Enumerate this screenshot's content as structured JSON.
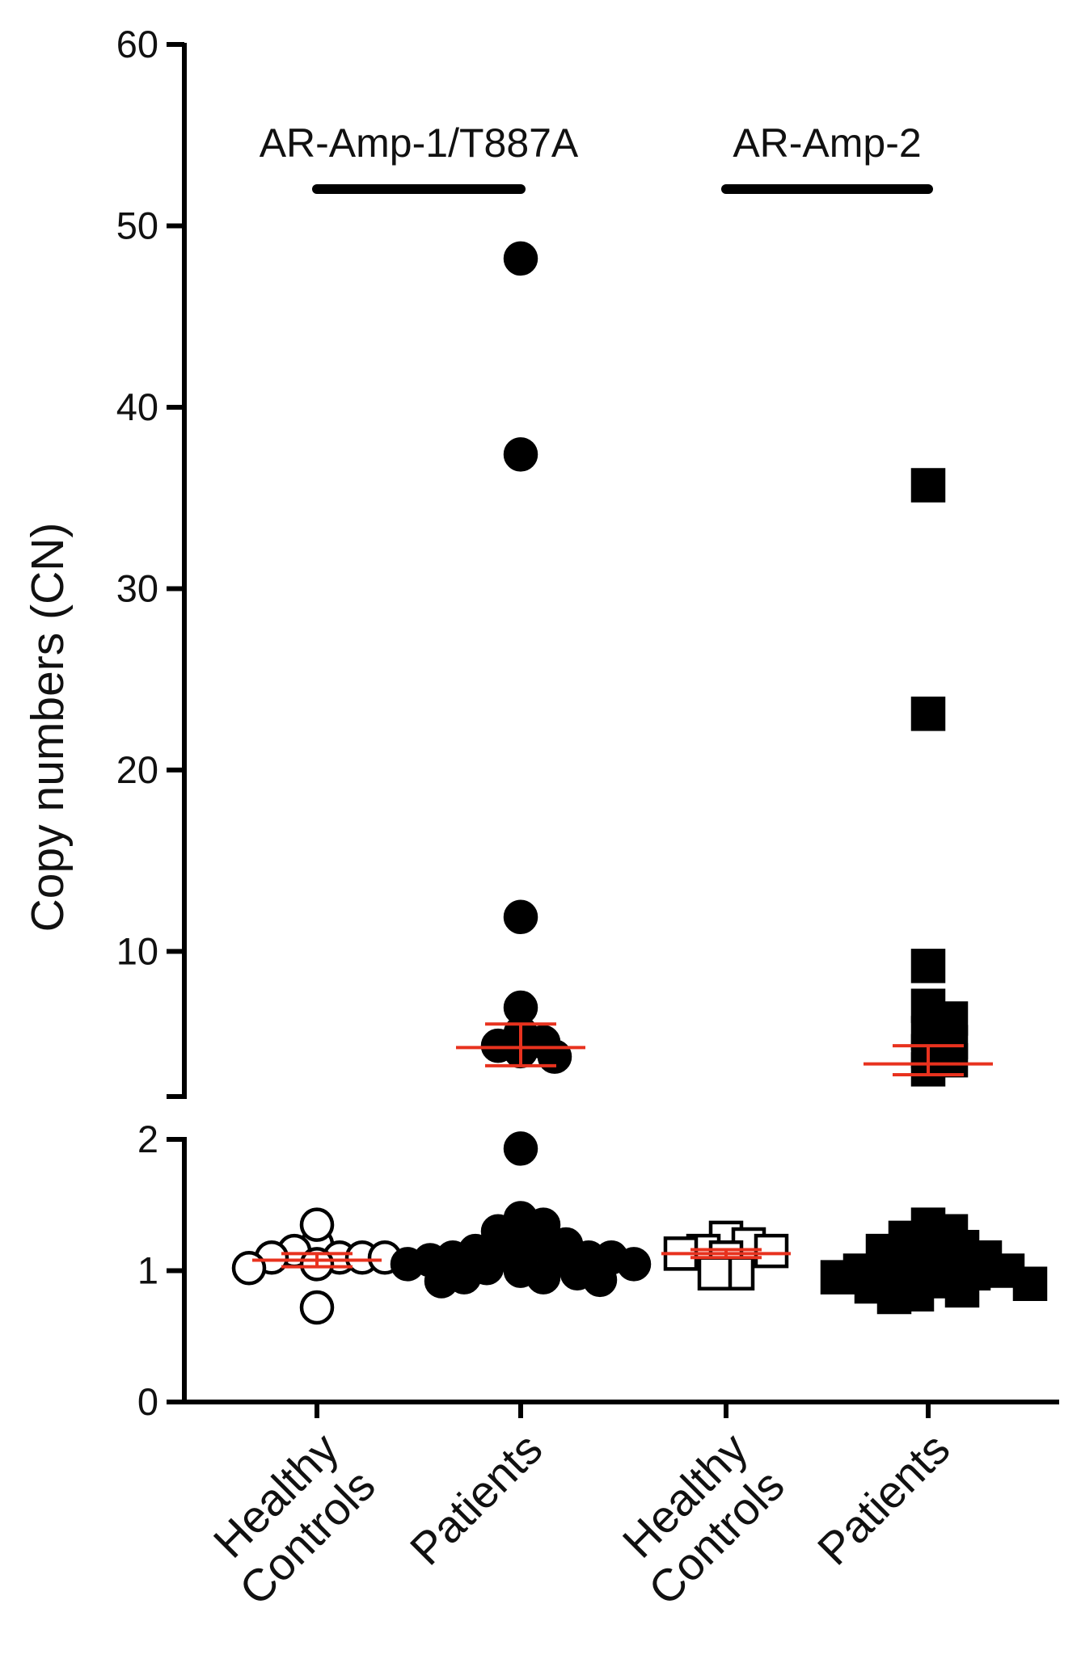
{
  "chart_data": {
    "type": "scatter",
    "ylabel": "Copy numbers (CN)",
    "categories": [
      {
        "line1": "Healthy",
        "line2": "Controls"
      },
      {
        "line1": "Patients",
        "line2": ""
      },
      {
        "line1": "Healthy",
        "line2": "Controls"
      },
      {
        "line1": "Patients",
        "line2": ""
      }
    ],
    "groups": [
      {
        "label": "AR-Amp-1/T887A",
        "categories": [
          0,
          1
        ]
      },
      {
        "label": "AR-Amp-2",
        "categories": [
          2,
          3
        ]
      }
    ],
    "y_axis": {
      "broken": true,
      "lower_range": [
        0,
        2
      ],
      "upper_range": [
        2,
        60
      ],
      "lower_ticks": [
        "0",
        "1",
        "2"
      ],
      "upper_ticks": [
        "10",
        "20",
        "30",
        "40",
        "50",
        "60"
      ]
    },
    "series": [
      {
        "category": 0,
        "marker": "circle",
        "filled": false,
        "values": [
          1.2,
          1.1,
          1.15,
          1.05,
          1.1,
          1.1,
          1.35,
          1.1,
          0.72,
          1.02
        ],
        "mean": 1.08,
        "sem": [
          1.03,
          1.13
        ]
      },
      {
        "category": 1,
        "marker": "circle",
        "filled": true,
        "values": [
          48.2,
          37.4,
          11.9,
          6.9,
          5.5,
          5.0,
          4.8,
          4.5,
          4.2,
          1.93,
          1.4,
          1.35,
          1.3,
          1.25,
          1.2,
          1.2,
          1.15,
          1.15,
          1.1,
          1.1,
          1.1,
          1.1,
          1.08,
          1.08,
          1.05,
          1.05,
          1.05,
          1.02,
          1.0,
          1.0,
          0.98,
          0.95,
          0.95,
          0.93,
          0.92
        ],
        "mean": 4.7,
        "sem": [
          3.7,
          6.0
        ]
      },
      {
        "category": 2,
        "marker": "square",
        "filled": false,
        "values": [
          1.25,
          1.2,
          1.15,
          1.15,
          1.13,
          1.1,
          0.98,
          0.98
        ],
        "mean": 1.13,
        "sem": [
          1.1,
          1.16
        ]
      },
      {
        "category": 3,
        "marker": "square",
        "filled": true,
        "values": [
          35.7,
          23.1,
          9.2,
          7.0,
          6.3,
          5.5,
          5.0,
          4.5,
          4.0,
          3.5,
          1.35,
          1.3,
          1.25,
          1.2,
          1.18,
          1.15,
          1.1,
          1.1,
          1.05,
          1.05,
          1.0,
          1.0,
          1.0,
          0.98,
          0.95,
          0.95,
          0.92,
          0.9,
          0.88,
          0.85,
          0.82,
          0.8
        ],
        "mean": 3.8,
        "sem": [
          3.2,
          4.8
        ]
      }
    ],
    "colors": {
      "axis": "#000000",
      "marker": "#000000",
      "mean_line": "#e8321e"
    }
  }
}
